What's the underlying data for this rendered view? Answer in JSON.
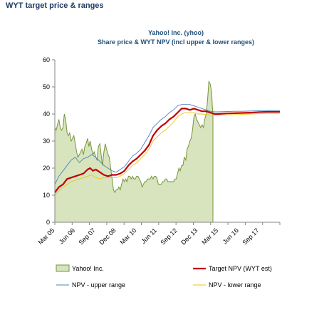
{
  "page": {
    "heading": "WYT target price & ranges"
  },
  "chart_data": {
    "type": "line",
    "title": "Yahoo! Inc. (yhoo)",
    "subtitle": "Share price & WYT NPV (incl upper & lower ranges)",
    "ylim": [
      0,
      60
    ],
    "yticks": [
      0,
      10,
      20,
      30,
      40,
      50,
      60
    ],
    "xlim": [
      2005.17,
      2018.92
    ],
    "xticks": [
      {
        "label": "Mar 05",
        "x": 2005.17
      },
      {
        "label": "Jun 06",
        "x": 2006.42
      },
      {
        "label": "Sep 07",
        "x": 2007.67
      },
      {
        "label": "Dec 08",
        "x": 2008.92
      },
      {
        "label": "Mar 10",
        "x": 2010.17
      },
      {
        "label": "Jun 11",
        "x": 2011.42
      },
      {
        "label": "Sep 12",
        "x": 2012.67
      },
      {
        "label": "Dec 13",
        "x": 2013.92
      },
      {
        "label": "Mar 15",
        "x": 2015.17
      },
      {
        "label": "Jun 16",
        "x": 2016.42
      },
      {
        "label": "Sep 17",
        "x": 2017.67
      }
    ],
    "grid": false,
    "legend_position": "bottom",
    "series": [
      {
        "name": "Yahoo! Inc.",
        "style": "area",
        "color": "#77933c",
        "fill": "#d7e4bd",
        "points": [
          [
            2005.17,
            35
          ],
          [
            2005.25,
            34
          ],
          [
            2005.33,
            36
          ],
          [
            2005.42,
            38
          ],
          [
            2005.5,
            35
          ],
          [
            2005.58,
            34
          ],
          [
            2005.67,
            35
          ],
          [
            2005.75,
            40
          ],
          [
            2005.83,
            38
          ],
          [
            2005.92,
            33
          ],
          [
            2006.0,
            32
          ],
          [
            2006.08,
            33
          ],
          [
            2006.17,
            30
          ],
          [
            2006.25,
            31
          ],
          [
            2006.33,
            32
          ],
          [
            2006.42,
            29
          ],
          [
            2006.5,
            26
          ],
          [
            2006.58,
            24
          ],
          [
            2006.67,
            25
          ],
          [
            2006.75,
            26
          ],
          [
            2006.83,
            27
          ],
          [
            2006.92,
            25
          ],
          [
            2007.0,
            28
          ],
          [
            2007.08,
            29
          ],
          [
            2007.17,
            31
          ],
          [
            2007.25,
            28
          ],
          [
            2007.33,
            30
          ],
          [
            2007.42,
            27
          ],
          [
            2007.5,
            25
          ],
          [
            2007.58,
            26
          ],
          [
            2007.67,
            24
          ],
          [
            2007.75,
            23
          ],
          [
            2007.83,
            28
          ],
          [
            2007.92,
            29
          ],
          [
            2008.0,
            25
          ],
          [
            2008.08,
            21
          ],
          [
            2008.17,
            26
          ],
          [
            2008.25,
            29
          ],
          [
            2008.33,
            27
          ],
          [
            2008.42,
            25
          ],
          [
            2008.5,
            24
          ],
          [
            2008.58,
            20
          ],
          [
            2008.67,
            16
          ],
          [
            2008.75,
            12
          ],
          [
            2008.83,
            11
          ],
          [
            2008.92,
            12
          ],
          [
            2009.0,
            12
          ],
          [
            2009.08,
            13
          ],
          [
            2009.17,
            12
          ],
          [
            2009.25,
            14
          ],
          [
            2009.33,
            16
          ],
          [
            2009.42,
            15
          ],
          [
            2009.5,
            16
          ],
          [
            2009.58,
            15
          ],
          [
            2009.67,
            17
          ],
          [
            2009.75,
            17
          ],
          [
            2009.83,
            16
          ],
          [
            2009.92,
            17
          ],
          [
            2010.0,
            16
          ],
          [
            2010.08,
            16
          ],
          [
            2010.17,
            17
          ],
          [
            2010.25,
            17
          ],
          [
            2010.33,
            16
          ],
          [
            2010.42,
            15
          ],
          [
            2010.5,
            13
          ],
          [
            2010.58,
            14
          ],
          [
            2010.67,
            15
          ],
          [
            2010.75,
            15
          ],
          [
            2010.83,
            16
          ],
          [
            2010.92,
            16
          ],
          [
            2011.0,
            16
          ],
          [
            2011.08,
            17
          ],
          [
            2011.17,
            16
          ],
          [
            2011.25,
            17
          ],
          [
            2011.33,
            17
          ],
          [
            2011.42,
            16
          ],
          [
            2011.5,
            14
          ],
          [
            2011.58,
            14
          ],
          [
            2011.67,
            14
          ],
          [
            2011.75,
            15
          ],
          [
            2011.83,
            15
          ],
          [
            2011.92,
            16
          ],
          [
            2012.0,
            16
          ],
          [
            2012.08,
            15
          ],
          [
            2012.17,
            15
          ],
          [
            2012.25,
            15
          ],
          [
            2012.33,
            15
          ],
          [
            2012.42,
            15
          ],
          [
            2012.5,
            16
          ],
          [
            2012.58,
            16
          ],
          [
            2012.67,
            18
          ],
          [
            2012.75,
            20
          ],
          [
            2012.83,
            19
          ],
          [
            2012.92,
            21
          ],
          [
            2013.0,
            21
          ],
          [
            2013.08,
            24
          ],
          [
            2013.17,
            23
          ],
          [
            2013.25,
            27
          ],
          [
            2013.33,
            28
          ],
          [
            2013.42,
            30
          ],
          [
            2013.5,
            31
          ],
          [
            2013.58,
            34
          ],
          [
            2013.67,
            39
          ],
          [
            2013.75,
            40
          ],
          [
            2013.83,
            38
          ],
          [
            2013.92,
            37
          ],
          [
            2014.0,
            36
          ],
          [
            2014.08,
            35
          ],
          [
            2014.17,
            36
          ],
          [
            2014.25,
            35
          ],
          [
            2014.33,
            38
          ],
          [
            2014.42,
            40
          ],
          [
            2014.5,
            45
          ],
          [
            2014.58,
            52
          ],
          [
            2014.67,
            51
          ],
          [
            2014.75,
            48
          ],
          [
            2014.79,
            43
          ],
          [
            2014.83,
            40
          ]
        ]
      },
      {
        "name": "Target NPV (WYT est)",
        "style": "line",
        "color": "#c00000",
        "points": [
          [
            2005.17,
            11
          ],
          [
            2005.42,
            13
          ],
          [
            2005.67,
            14
          ],
          [
            2005.92,
            16
          ],
          [
            2006.17,
            16.5
          ],
          [
            2006.42,
            17
          ],
          [
            2006.67,
            17.5
          ],
          [
            2006.92,
            18
          ],
          [
            2007.17,
            19.5
          ],
          [
            2007.33,
            20
          ],
          [
            2007.5,
            19
          ],
          [
            2007.67,
            19.5
          ],
          [
            2007.92,
            18.5
          ],
          [
            2008.17,
            17.5
          ],
          [
            2008.42,
            17
          ],
          [
            2008.67,
            17.5
          ],
          [
            2008.92,
            17.5
          ],
          [
            2009.17,
            18
          ],
          [
            2009.42,
            19
          ],
          [
            2009.67,
            21
          ],
          [
            2009.92,
            22.5
          ],
          [
            2010.17,
            23.5
          ],
          [
            2010.42,
            25
          ],
          [
            2010.67,
            26.5
          ],
          [
            2010.92,
            28.5
          ],
          [
            2011.17,
            32
          ],
          [
            2011.42,
            34
          ],
          [
            2011.67,
            35.5
          ],
          [
            2011.92,
            36.5
          ],
          [
            2012.17,
            38
          ],
          [
            2012.42,
            39
          ],
          [
            2012.67,
            40.5
          ],
          [
            2012.92,
            42
          ],
          [
            2013.17,
            42
          ],
          [
            2013.42,
            41.5
          ],
          [
            2013.67,
            42
          ],
          [
            2013.92,
            41.5
          ],
          [
            2014.17,
            41
          ],
          [
            2014.42,
            41
          ],
          [
            2014.67,
            40.5
          ],
          [
            2014.92,
            40
          ],
          [
            2015.17,
            40
          ],
          [
            2015.67,
            40.2
          ],
          [
            2016.17,
            40.3
          ],
          [
            2016.67,
            40.4
          ],
          [
            2017.17,
            40.5
          ],
          [
            2017.67,
            40.7
          ],
          [
            2018.17,
            40.8
          ],
          [
            2018.92,
            40.8
          ]
        ]
      },
      {
        "name": "NPV - upper range",
        "style": "line",
        "color": "#4f81bd",
        "points": [
          [
            2005.17,
            14
          ],
          [
            2005.42,
            17
          ],
          [
            2005.67,
            19
          ],
          [
            2005.92,
            21
          ],
          [
            2006.17,
            23
          ],
          [
            2006.42,
            24
          ],
          [
            2006.67,
            22
          ],
          [
            2006.92,
            23.5
          ],
          [
            2007.17,
            24
          ],
          [
            2007.42,
            25
          ],
          [
            2007.67,
            24
          ],
          [
            2007.92,
            22.5
          ],
          [
            2008.17,
            21
          ],
          [
            2008.42,
            20
          ],
          [
            2008.67,
            19
          ],
          [
            2008.92,
            18.5
          ],
          [
            2009.17,
            19.5
          ],
          [
            2009.42,
            20.5
          ],
          [
            2009.67,
            22.5
          ],
          [
            2009.92,
            24.5
          ],
          [
            2010.17,
            25.5
          ],
          [
            2010.42,
            27
          ],
          [
            2010.67,
            29.5
          ],
          [
            2010.92,
            32
          ],
          [
            2011.17,
            35
          ],
          [
            2011.42,
            36.5
          ],
          [
            2011.67,
            38
          ],
          [
            2011.92,
            39
          ],
          [
            2012.17,
            40.5
          ],
          [
            2012.42,
            41.5
          ],
          [
            2012.67,
            43
          ],
          [
            2012.92,
            43.5
          ],
          [
            2013.17,
            43.5
          ],
          [
            2013.42,
            43.5
          ],
          [
            2013.67,
            43
          ],
          [
            2013.92,
            42.5
          ],
          [
            2014.17,
            42
          ],
          [
            2014.42,
            41.5
          ],
          [
            2014.67,
            41
          ],
          [
            2014.92,
            40.8
          ],
          [
            2015.17,
            40.8
          ],
          [
            2015.67,
            40.9
          ],
          [
            2016.17,
            41
          ],
          [
            2016.67,
            41
          ],
          [
            2017.17,
            41.1
          ],
          [
            2017.67,
            41.2
          ],
          [
            2018.17,
            41.3
          ],
          [
            2018.92,
            41.3
          ]
        ]
      },
      {
        "name": "NPV - lower range",
        "style": "line",
        "color": "#f2c314",
        "points": [
          [
            2005.17,
            10
          ],
          [
            2005.42,
            11.5
          ],
          [
            2005.67,
            13
          ],
          [
            2005.92,
            14
          ],
          [
            2006.17,
            15
          ],
          [
            2006.42,
            15.5
          ],
          [
            2006.67,
            16
          ],
          [
            2006.92,
            16.5
          ],
          [
            2007.17,
            17
          ],
          [
            2007.42,
            17.5
          ],
          [
            2007.67,
            16.5
          ],
          [
            2007.92,
            16
          ],
          [
            2008.17,
            16.5
          ],
          [
            2008.42,
            16.5
          ],
          [
            2008.67,
            16.5
          ],
          [
            2008.92,
            16.5
          ],
          [
            2009.17,
            17
          ],
          [
            2009.42,
            18
          ],
          [
            2009.67,
            19.5
          ],
          [
            2009.92,
            21
          ],
          [
            2010.17,
            22
          ],
          [
            2010.42,
            23.5
          ],
          [
            2010.67,
            25
          ],
          [
            2010.92,
            27
          ],
          [
            2011.17,
            30
          ],
          [
            2011.42,
            31.5
          ],
          [
            2011.67,
            33
          ],
          [
            2011.92,
            34
          ],
          [
            2012.17,
            35.5
          ],
          [
            2012.42,
            37
          ],
          [
            2012.67,
            39
          ],
          [
            2012.92,
            40
          ],
          [
            2013.17,
            40.5
          ],
          [
            2013.42,
            40.5
          ],
          [
            2013.67,
            40.5
          ],
          [
            2013.92,
            40
          ],
          [
            2014.17,
            40
          ],
          [
            2014.42,
            39.8
          ],
          [
            2014.67,
            39.5
          ],
          [
            2014.92,
            39.5
          ],
          [
            2015.17,
            39.5
          ],
          [
            2015.67,
            39.7
          ],
          [
            2016.17,
            39.8
          ],
          [
            2016.67,
            39.9
          ],
          [
            2017.17,
            40
          ],
          [
            2017.67,
            40.1
          ],
          [
            2018.17,
            40.2
          ],
          [
            2018.92,
            40.2
          ]
        ]
      }
    ]
  }
}
